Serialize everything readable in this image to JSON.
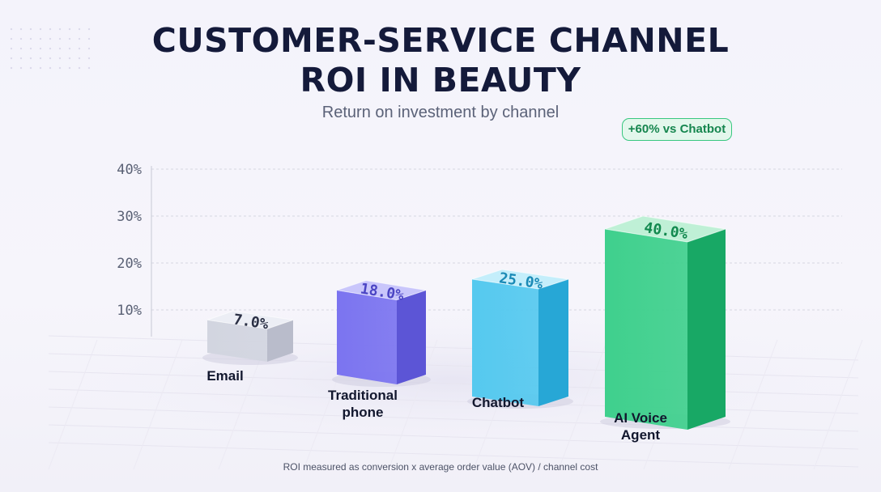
{
  "title_line1": "CUSTOMER-SERVICE CHANNEL",
  "title_line2": "ROI IN BEAUTY",
  "subtitle": "Return on investment by channel",
  "callout": "+60% vs Chatbot",
  "footnote": "ROI measured as conversion x average order value (AOV) / channel cost",
  "chart_data": {
    "type": "bar",
    "categories": [
      [
        "Email"
      ],
      [
        "Traditional",
        "phone"
      ],
      [
        "Chatbot"
      ],
      [
        "AI Voice",
        "Agent"
      ]
    ],
    "values": [
      7.0,
      18.0,
      25.0,
      40.0
    ],
    "value_labels": [
      "7.0%",
      "18.0%",
      "25.0%",
      "40.0%"
    ],
    "y_ticks": [
      10,
      20,
      30,
      40
    ],
    "y_tick_labels": [
      "10%",
      "20%",
      "30%",
      "40%"
    ],
    "ylim": [
      0,
      40
    ],
    "grid": true,
    "bar_colors": [
      {
        "front": "#d2d5e0",
        "side": "#b9bccb",
        "top": "#eceef5",
        "text": "#2b3045"
      },
      {
        "front": "#7b74f0",
        "side": "#5c55d6",
        "top": "#c9c6fb",
        "text": "#4b45c4"
      },
      {
        "front": "#55c9ef",
        "side": "#27a7d6",
        "top": "#c4eefb",
        "text": "#1a8ab6"
      },
      {
        "front": "#3fd08d",
        "side": "#18a865",
        "top": "#bff0d6",
        "text": "#12894f"
      }
    ]
  }
}
